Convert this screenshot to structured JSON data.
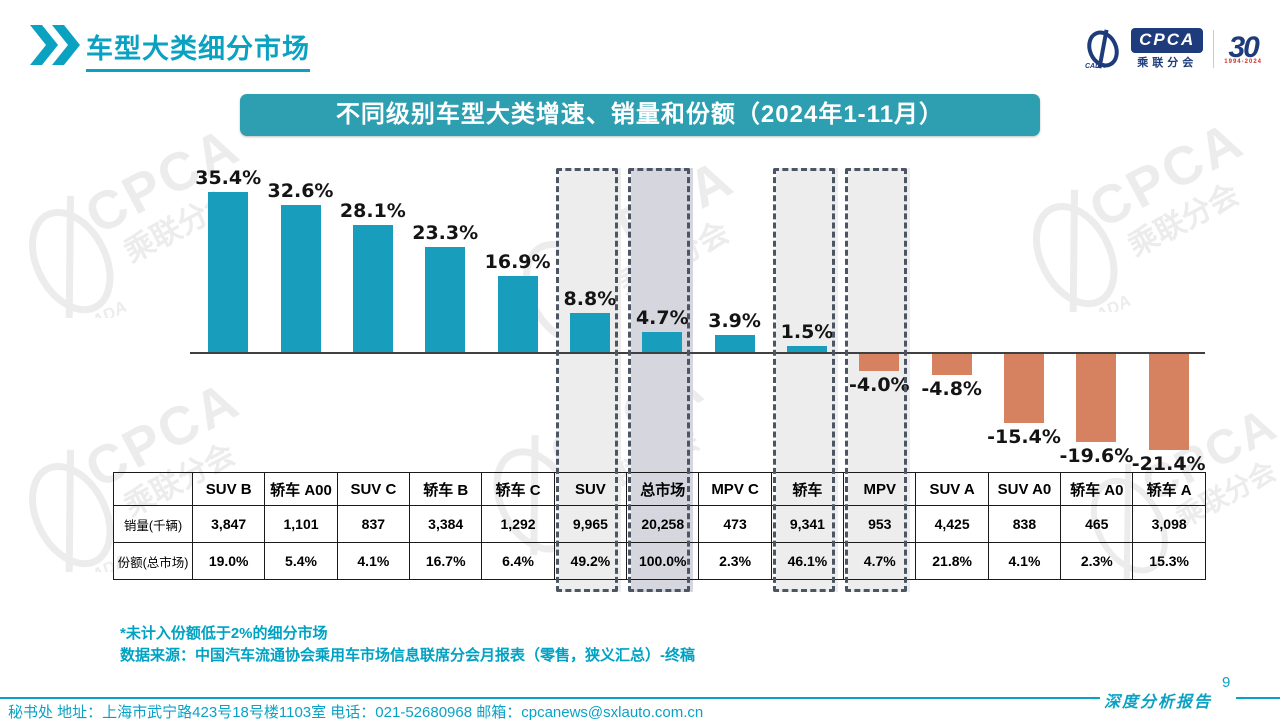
{
  "page": {
    "title": "车型大类细分市场",
    "page_number": "9",
    "report_label": "深度分析报告",
    "footer_contact": "秘书处  地址：上海市武宁路423号18号楼1103室 电话：021-52680968  邮箱：cpcanews@sxlauto.com.cn"
  },
  "logos": {
    "cpca": "CPCA",
    "cpca_sub": "乘联分会",
    "cada": "CADA",
    "anniversary_number": "30",
    "anniversary_years": "1994-2024"
  },
  "watermark": {
    "text": "CPCA",
    "sub": "乘联分会",
    "cada": "CADA"
  },
  "notes": {
    "note1": "*未计入份额低于2%的细分市场",
    "note2": "数据来源：中国汽车流通协会乘用车市场信息联席分会月报表（零售，狭义汇总）-终稿"
  },
  "chart_data": {
    "type": "bar",
    "title": "不同级别车型大类增速、销量和份额（2024年1-11月）",
    "categories": [
      "SUV B",
      "轿车 A00",
      "SUV C",
      "轿车 B",
      "轿车 C",
      "SUV",
      "总市场",
      "MPV C",
      "轿车",
      "MPV",
      "SUV A",
      "SUV A0",
      "轿车 A0",
      "轿车 A"
    ],
    "series": [
      {
        "name": "增速",
        "unit": "%",
        "values": [
          35.4,
          32.6,
          28.1,
          23.3,
          16.9,
          8.8,
          4.7,
          3.9,
          1.5,
          -4.0,
          -4.8,
          -15.4,
          -19.6,
          -21.4
        ]
      },
      {
        "name": "销量(千辆)",
        "values": [
          "3,847",
          "1,101",
          "837",
          "3,384",
          "1,292",
          "9,965",
          "20,258",
          "473",
          "9,341",
          "953",
          "4,425",
          "838",
          "465",
          "3,098"
        ]
      },
      {
        "name": "份额(总市场)",
        "values": [
          "19.0%",
          "5.4%",
          "4.1%",
          "16.7%",
          "6.4%",
          "49.2%",
          "100.0%",
          "2.3%",
          "46.1%",
          "4.7%",
          "21.8%",
          "4.1%",
          "2.3%",
          "15.3%"
        ]
      }
    ],
    "table_row_labels": [
      "销量(千辆)",
      "份额(总市场)"
    ],
    "highlighted_columns": [
      5,
      6,
      8,
      9
    ],
    "dark_highlight_column": 6,
    "ylim": [
      -25,
      40
    ],
    "grid": false,
    "legend": false,
    "colors": {
      "positive_bar": "#189dbd",
      "negative_bar": "#d6815f",
      "highlight_fill": "#ededee",
      "dark_highlight_fill": "#d6d6df",
      "accent_teal": "#0aa2c4",
      "banner_teal": "#2d9fb1",
      "navy": "#1e3c7b",
      "red": "#c8322b"
    }
  }
}
